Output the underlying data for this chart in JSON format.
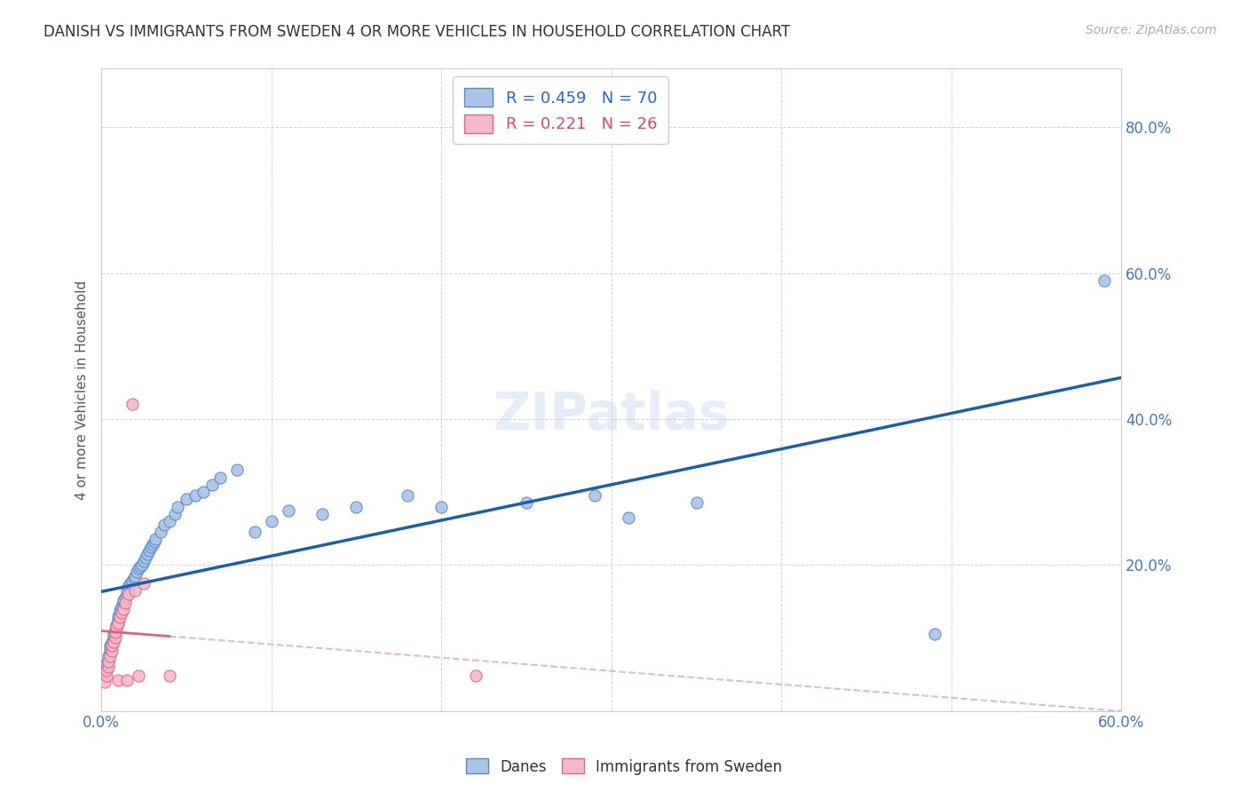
{
  "title": "DANISH VS IMMIGRANTS FROM SWEDEN 4 OR MORE VEHICLES IN HOUSEHOLD CORRELATION CHART",
  "source_text": "Source: ZipAtlas.com",
  "ylabel": "4 or more Vehicles in Household",
  "xlim": [
    0.0,
    0.6
  ],
  "ylim": [
    0.0,
    0.88
  ],
  "r_danes": 0.459,
  "n_danes": 70,
  "r_immigrants": 0.221,
  "n_immigrants": 26,
  "danes_color": "#aac4e8",
  "danes_edge_color": "#5588cc",
  "danes_line_color": "#1a5fa8",
  "immigrants_color": "#f5b8c8",
  "immigrants_edge_color": "#dd6688",
  "immigrants_line_color": "#e0607a",
  "background_color": "#ffffff",
  "grid_color": "#cccccc",
  "danes_x": [
    0.002,
    0.003,
    0.003,
    0.004,
    0.004,
    0.005,
    0.005,
    0.005,
    0.006,
    0.006,
    0.007,
    0.007,
    0.008,
    0.008,
    0.009,
    0.009,
    0.01,
    0.01,
    0.01,
    0.011,
    0.011,
    0.012,
    0.012,
    0.013,
    0.013,
    0.014,
    0.015,
    0.015,
    0.016,
    0.016,
    0.017,
    0.018,
    0.019,
    0.02,
    0.021,
    0.022,
    0.023,
    0.024,
    0.025,
    0.026,
    0.027,
    0.028,
    0.029,
    0.03,
    0.031,
    0.032,
    0.035,
    0.037,
    0.04,
    0.043,
    0.045,
    0.05,
    0.055,
    0.06,
    0.065,
    0.07,
    0.08,
    0.09,
    0.1,
    0.11,
    0.13,
    0.15,
    0.18,
    0.2,
    0.25,
    0.29,
    0.31,
    0.35,
    0.49,
    0.59
  ],
  "danes_y": [
    0.055,
    0.06,
    0.065,
    0.068,
    0.075,
    0.08,
    0.085,
    0.09,
    0.09,
    0.095,
    0.1,
    0.105,
    0.108,
    0.112,
    0.115,
    0.118,
    0.12,
    0.125,
    0.13,
    0.132,
    0.138,
    0.14,
    0.143,
    0.148,
    0.152,
    0.155,
    0.158,
    0.165,
    0.168,
    0.172,
    0.175,
    0.178,
    0.182,
    0.185,
    0.19,
    0.195,
    0.198,
    0.2,
    0.205,
    0.21,
    0.215,
    0.22,
    0.225,
    0.228,
    0.232,
    0.235,
    0.245,
    0.255,
    0.26,
    0.27,
    0.28,
    0.29,
    0.295,
    0.3,
    0.31,
    0.32,
    0.33,
    0.245,
    0.26,
    0.275,
    0.27,
    0.28,
    0.295,
    0.28,
    0.285,
    0.295,
    0.265,
    0.285,
    0.105,
    0.59
  ],
  "immigrants_x": [
    0.002,
    0.003,
    0.003,
    0.004,
    0.004,
    0.005,
    0.006,
    0.006,
    0.007,
    0.008,
    0.008,
    0.009,
    0.01,
    0.01,
    0.011,
    0.012,
    0.013,
    0.014,
    0.015,
    0.016,
    0.018,
    0.02,
    0.022,
    0.025,
    0.04,
    0.22
  ],
  "immigrants_y": [
    0.04,
    0.048,
    0.055,
    0.06,
    0.068,
    0.075,
    0.082,
    0.09,
    0.095,
    0.1,
    0.108,
    0.115,
    0.042,
    0.12,
    0.128,
    0.135,
    0.14,
    0.148,
    0.042,
    0.16,
    0.42,
    0.165,
    0.048,
    0.175,
    0.048,
    0.048
  ]
}
